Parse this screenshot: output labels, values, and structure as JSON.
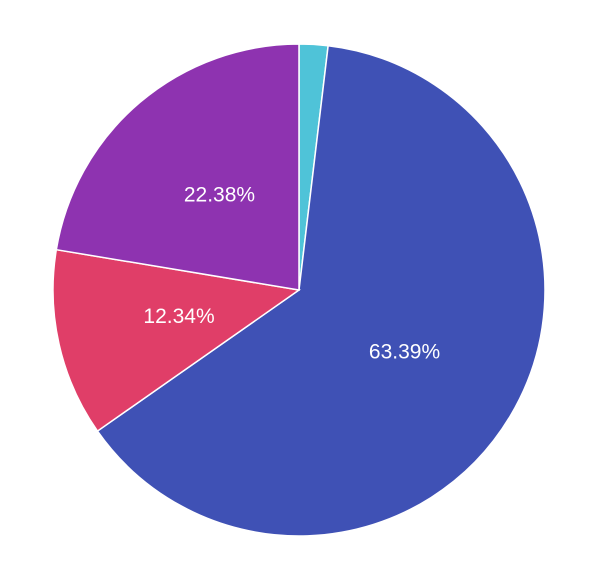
{
  "chart_data": {
    "type": "pie",
    "values": [
      1.89,
      63.39,
      12.34,
      22.38
    ],
    "value_labels": [
      null,
      "63.39%",
      "12.34%",
      "22.38%"
    ],
    "colors": [
      "#4fc3d8",
      "#3f51b5",
      "#e03e68",
      "#8e33b0"
    ]
  }
}
